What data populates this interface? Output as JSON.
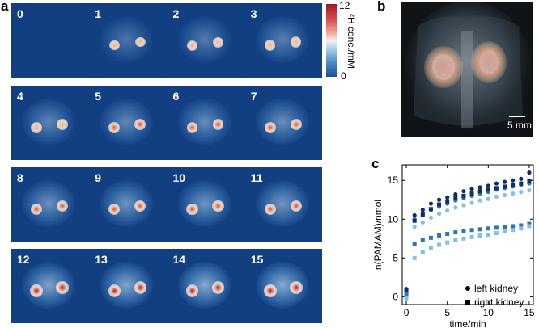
{
  "panels": {
    "a": "a",
    "b": "b",
    "c": "c"
  },
  "frames": [
    {
      "label": "0",
      "intensity": 0.0
    },
    {
      "label": "1",
      "intensity": 0.45
    },
    {
      "label": "2",
      "intensity": 0.5
    },
    {
      "label": "3",
      "intensity": 0.55
    },
    {
      "label": "4",
      "intensity": 0.6
    },
    {
      "label": "5",
      "intensity": 0.62
    },
    {
      "label": "6",
      "intensity": 0.65
    },
    {
      "label": "7",
      "intensity": 0.67
    },
    {
      "label": "8",
      "intensity": 0.7
    },
    {
      "label": "9",
      "intensity": 0.72
    },
    {
      "label": "10",
      "intensity": 0.74
    },
    {
      "label": "11",
      "intensity": 0.75
    },
    {
      "label": "12",
      "intensity": 0.85
    },
    {
      "label": "13",
      "intensity": 0.87
    },
    {
      "label": "14",
      "intensity": 0.9
    },
    {
      "label": "15",
      "intensity": 0.92
    }
  ],
  "colorbar": {
    "max_label": "12",
    "min_label": "0",
    "title": "²H conc./mM",
    "colors": {
      "top": "#b31b2a",
      "mid": "#f2f2f2",
      "bottom": "#1f5fa6",
      "background": "#123e82"
    }
  },
  "mri": {
    "scalebar_label": "5 mm"
  },
  "chart_data": {
    "type": "scatter",
    "xlabel": "time/min",
    "ylabel": "n(PAMAM)/nmol",
    "xlim": [
      -0.5,
      15.5
    ],
    "ylim": [
      -1,
      17
    ],
    "xticks": [
      0,
      5,
      10,
      15
    ],
    "yticks": [
      0,
      5,
      10,
      15
    ],
    "legend_position": "bottom-right",
    "legend": [
      {
        "marker": "circle",
        "label": "left kidney"
      },
      {
        "marker": "square",
        "label": "right kidney"
      }
    ],
    "series": [
      {
        "marker": "circle",
        "color": "#0e2f6b",
        "x": [
          0,
          1,
          2,
          3,
          4,
          5,
          6,
          7,
          8,
          9,
          10,
          11,
          12,
          13,
          14,
          15
        ],
        "y": [
          1.0,
          10.5,
          11.2,
          12.0,
          12.5,
          12.8,
          13.2,
          13.6,
          13.9,
          14.1,
          14.3,
          14.6,
          14.8,
          15.0,
          15.2,
          16.0
        ]
      },
      {
        "marker": "circle",
        "color": "#2f74b5",
        "x": [
          0,
          1,
          2,
          3,
          4,
          5,
          6,
          7,
          8,
          9,
          10,
          11,
          12,
          13,
          14,
          15
        ],
        "y": [
          0.6,
          10.0,
          10.6,
          11.2,
          11.6,
          12.0,
          12.4,
          12.7,
          13.0,
          13.3,
          13.5,
          13.8,
          14.0,
          14.2,
          14.4,
          14.6
        ]
      },
      {
        "marker": "circle",
        "color": "#86bfe5",
        "x": [
          0,
          1,
          2,
          3,
          4,
          5,
          6,
          7,
          8,
          9,
          10,
          11,
          12,
          13,
          14,
          15
        ],
        "y": [
          0.2,
          9.0,
          9.6,
          10.2,
          10.7,
          11.1,
          11.5,
          11.8,
          12.1,
          12.4,
          12.6,
          12.9,
          13.1,
          13.3,
          13.5,
          13.7
        ]
      },
      {
        "marker": "square",
        "color": "#0e2f6b",
        "x": [
          0,
          1,
          2,
          3,
          4,
          5,
          6,
          7,
          8,
          9,
          10,
          11,
          12,
          13,
          14,
          15
        ],
        "y": [
          0.8,
          9.8,
          10.6,
          11.3,
          11.9,
          12.3,
          12.7,
          13.0,
          13.3,
          13.6,
          13.8,
          14.0,
          14.2,
          14.4,
          14.6,
          14.9
        ]
      },
      {
        "marker": "square",
        "color": "#2f74b5",
        "x": [
          0,
          1,
          2,
          3,
          4,
          5,
          6,
          7,
          8,
          9,
          10,
          11,
          12,
          13,
          14,
          15
        ],
        "y": [
          0.3,
          6.8,
          7.3,
          7.6,
          7.9,
          8.1,
          8.3,
          8.5,
          8.6,
          8.7,
          8.8,
          8.9,
          9.0,
          9.1,
          9.2,
          9.4
        ]
      },
      {
        "marker": "square",
        "color": "#86bfe5",
        "x": [
          0,
          1,
          2,
          3,
          4,
          5,
          6,
          7,
          8,
          9,
          10,
          11,
          12,
          13,
          14,
          15
        ],
        "y": [
          -0.2,
          5.0,
          5.8,
          6.3,
          6.7,
          7.0,
          7.3,
          7.5,
          7.7,
          7.9,
          8.0,
          8.2,
          8.4,
          8.6,
          8.8,
          9.1
        ]
      }
    ]
  }
}
